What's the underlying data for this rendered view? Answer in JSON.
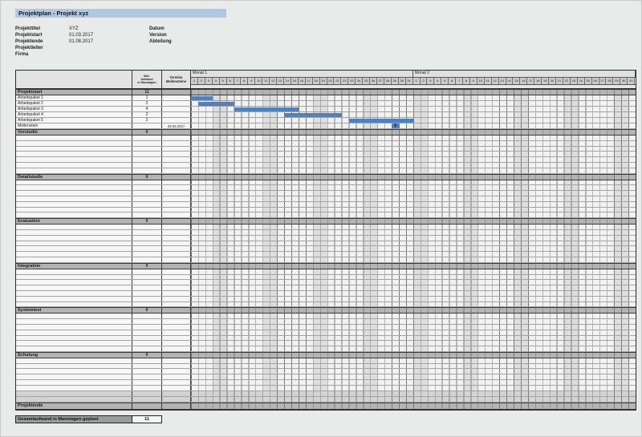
{
  "title": "Projektplan - Projekt xyz",
  "meta": {
    "left": [
      {
        "label": "Projekttitel",
        "value": "XYZ"
      },
      {
        "label": "Projektstart",
        "value": "01.03.2017"
      },
      {
        "label": "Projektende",
        "value": "01.08.2017"
      },
      {
        "label": "Projektleiter",
        "value": ""
      },
      {
        "label": "Firma",
        "value": ""
      }
    ],
    "right": [
      {
        "label": "Datum",
        "value": ""
      },
      {
        "label": "Version",
        "value": ""
      },
      {
        "label": "Abteilung",
        "value": ""
      }
    ]
  },
  "table": {
    "headers": {
      "name": "",
      "effort_lines": [
        "MA/-",
        "Aufwand",
        "in Manntagen"
      ],
      "dates_lines": [
        "Termine",
        "Meilensteine"
      ]
    },
    "months": [
      {
        "label": "Monat 1",
        "days": 31
      },
      {
        "label": "Monat 2",
        "days": 31
      }
    ],
    "weekend_columns": [
      4,
      5,
      11,
      12,
      18,
      19,
      25,
      26,
      32,
      33,
      39,
      40,
      46,
      47,
      53,
      54,
      60,
      61
    ],
    "rows": [
      {
        "type": "section",
        "label": "Projektstart",
        "effort": "11"
      },
      {
        "type": "task",
        "label": "Arbeitspaket 1",
        "effort": "1",
        "bar": [
          1,
          3
        ]
      },
      {
        "type": "task",
        "label": "Arbeitspaket 2",
        "effort": "2",
        "bar": [
          2,
          6
        ]
      },
      {
        "type": "task",
        "label": "Arbeitspaket 3",
        "effort": "4",
        "bar": [
          7,
          15
        ]
      },
      {
        "type": "task",
        "label": "Arbeitspaket 4",
        "effort": "2",
        "bar": [
          14,
          21
        ]
      },
      {
        "type": "task",
        "label": "Arbeitspaket 5",
        "effort": "2",
        "bar": [
          23,
          31
        ]
      },
      {
        "type": "milestone",
        "label": "Meilenstein",
        "effort": "",
        "date": "29.03.2017",
        "marker_col": 29,
        "marker_label": "X"
      },
      {
        "type": "section",
        "label": "Vorstudie",
        "effort": "0",
        "empty_rows": 7
      },
      {
        "type": "section",
        "label": "Detailstudie",
        "effort": "0",
        "empty_rows": 7
      },
      {
        "type": "section",
        "label": "Evaluation",
        "effort": "0",
        "empty_rows": 7
      },
      {
        "type": "section",
        "label": "Integration",
        "effort": "0",
        "empty_rows": 7
      },
      {
        "type": "section",
        "label": "Systemtest",
        "effort": "0",
        "empty_rows": 7
      },
      {
        "type": "section",
        "label": "Schulung",
        "effort": "0",
        "empty_rows": 6
      },
      {
        "type": "grayband"
      },
      {
        "type": "grayband"
      },
      {
        "type": "section",
        "label": "Projektende",
        "effort": ""
      }
    ]
  },
  "footer": {
    "label": "Gesamtaufwand in Manntagen geplant",
    "value": "11"
  },
  "colors": {
    "titlebar": "#b0c8e0",
    "bar": "#4f81bd",
    "section_band": "#b3b3b3",
    "weekend": "#dedede",
    "grid_line": "#787878"
  }
}
